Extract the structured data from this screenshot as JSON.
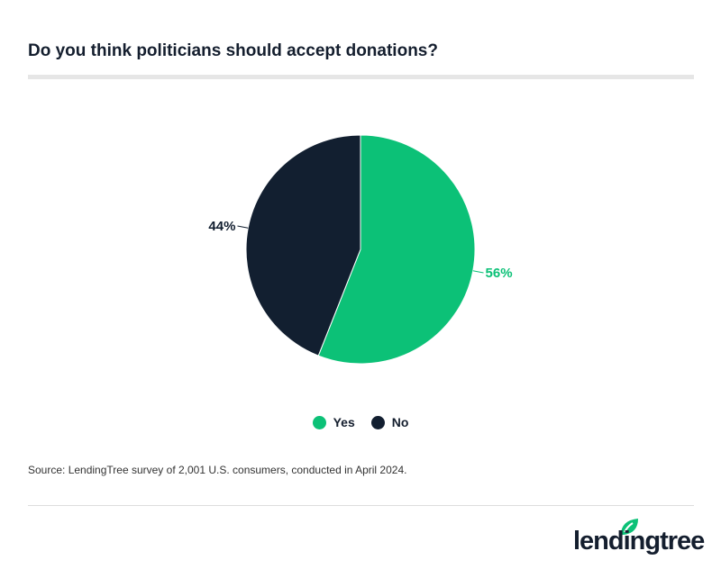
{
  "title": "Do you think politicians should accept donations?",
  "source": "Source: LendingTree survey of 2,001 U.S. consumers, conducted in April 2024.",
  "logo_text": "lendingtree",
  "colors": {
    "yes": "#0cc177",
    "no": "#121f30"
  },
  "chart_data": {
    "type": "pie",
    "categories": [
      "Yes",
      "No"
    ],
    "values": [
      56,
      44
    ],
    "data_labels": [
      "56%",
      "44%"
    ],
    "legend": "bottom"
  }
}
